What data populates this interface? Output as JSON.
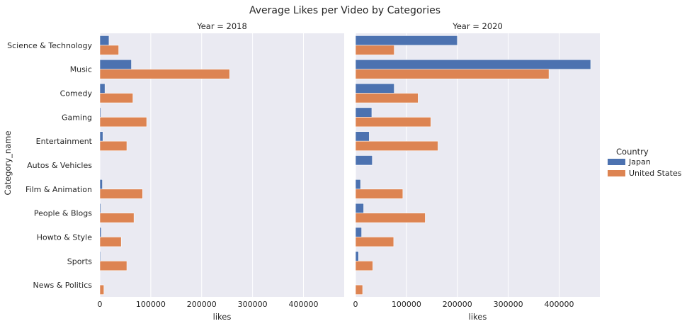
{
  "chart_data": {
    "type": "bar",
    "orientation": "horizontal",
    "title": "Average Likes per Video by Categories",
    "ylabel": "Category_name",
    "xlabel": "likes",
    "xlim": [
      0,
      480000
    ],
    "xticks": [
      0,
      100000,
      200000,
      300000,
      400000
    ],
    "grid": true,
    "legend": {
      "title": "Country",
      "placement": "right",
      "entries": [
        "Japan",
        "United States"
      ]
    },
    "categories": [
      "Science & Technology",
      "Music",
      "Comedy",
      "Gaming",
      "Entertainment",
      "Autos & Vehicles",
      "Film & Animation",
      "People & Blogs",
      "Howto & Style",
      "Sports",
      "News & Politics"
    ],
    "panels": [
      {
        "title": "Year = 2018",
        "series": [
          {
            "name": "Japan",
            "color": "#4c72b0",
            "values": [
              18000,
              62000,
              10000,
              2000,
              6000,
              0,
              5000,
              2000,
              3000,
              1500,
              0
            ]
          },
          {
            "name": "United States",
            "color": "#dd8452",
            "values": [
              37000,
              255000,
              65000,
              92000,
              53000,
              0,
              84000,
              67000,
              42000,
              53000,
              8000
            ]
          }
        ]
      },
      {
        "title": "Year = 2020",
        "series": [
          {
            "name": "Japan",
            "color": "#4c72b0",
            "values": [
              200000,
              462000,
              76000,
              32000,
              27000,
              33000,
              10000,
              16000,
              12000,
              6000,
              0
            ]
          },
          {
            "name": "United States",
            "color": "#dd8452",
            "values": [
              76000,
              380000,
              123000,
              148000,
              162000,
              0,
              93000,
              137000,
              75000,
              34000,
              14000
            ]
          }
        ]
      }
    ]
  }
}
